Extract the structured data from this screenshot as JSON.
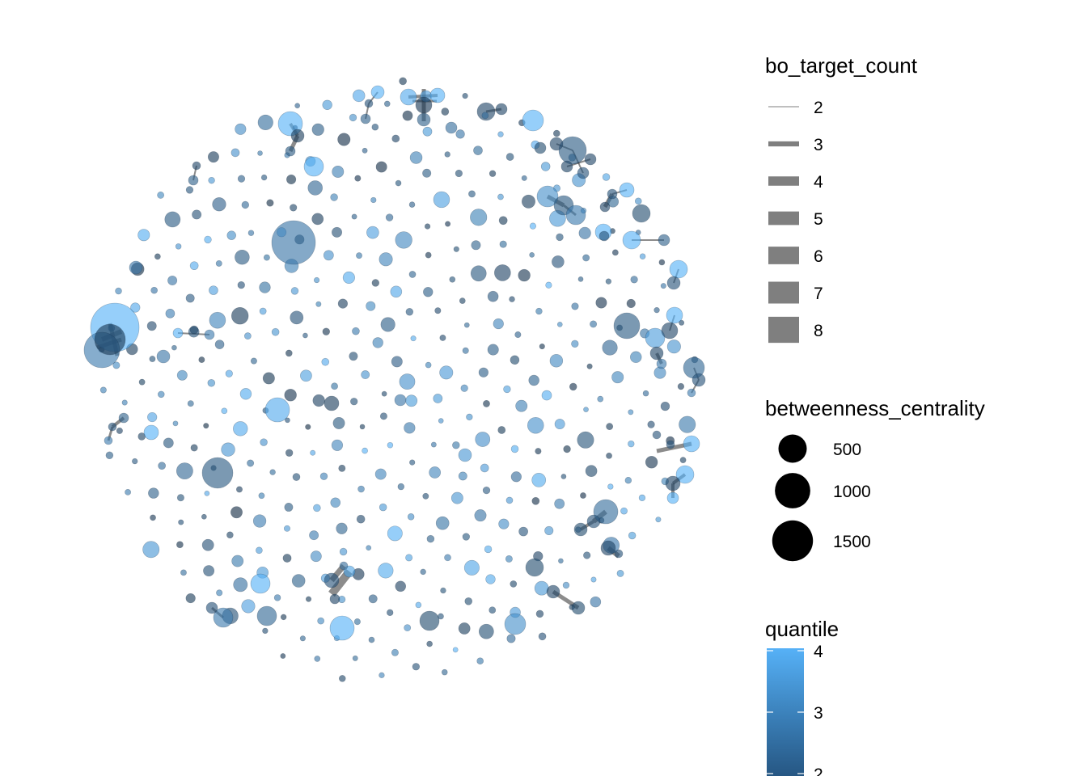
{
  "chart_data": {
    "type": "network",
    "title": "",
    "node_colors": {
      "low": "#132B43",
      "high": "#56B1F7"
    },
    "edge_color": "#1a1a1a",
    "legends": {
      "edge_width": {
        "title": "bo_target_count",
        "entries": [
          {
            "label": "2",
            "value": 2
          },
          {
            "label": "3",
            "value": 3
          },
          {
            "label": "4",
            "value": 4
          },
          {
            "label": "5",
            "value": 5
          },
          {
            "label": "6",
            "value": 6
          },
          {
            "label": "7",
            "value": 7
          },
          {
            "label": "8",
            "value": 8
          }
        ]
      },
      "node_size": {
        "title": "betweenness_centrality",
        "entries": [
          {
            "label": "500",
            "value": 500
          },
          {
            "label": "1000",
            "value": 1000
          },
          {
            "label": "1500",
            "value": 1500
          }
        ]
      },
      "node_color": {
        "title": "quantile",
        "ticks": [
          {
            "label": "4",
            "value": 4
          },
          {
            "label": "3",
            "value": 3
          },
          {
            "label": "2",
            "value": 2
          }
        ]
      }
    }
  }
}
